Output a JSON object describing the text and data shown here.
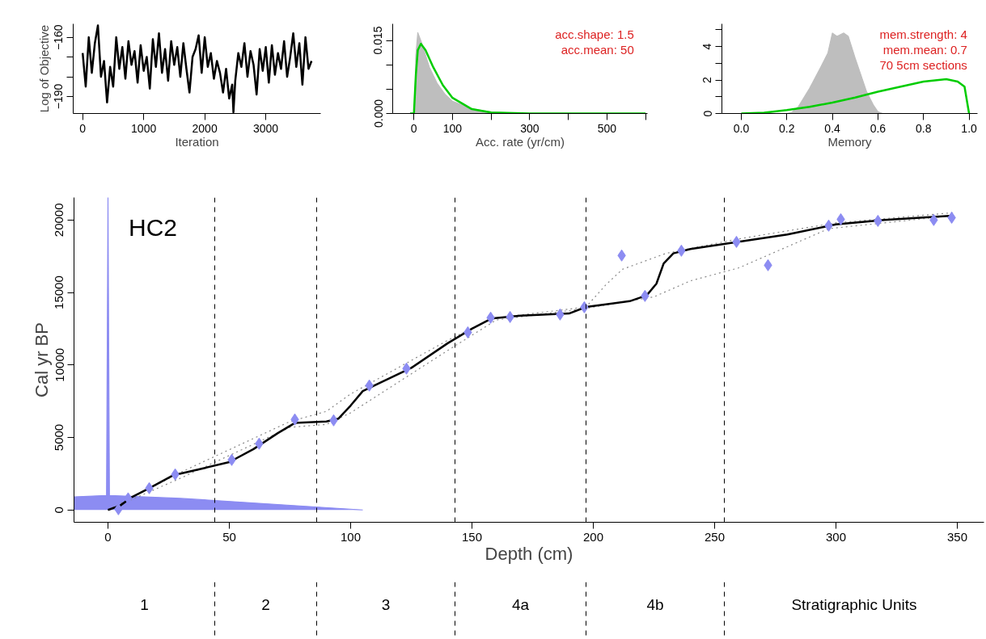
{
  "chart_data": [
    {
      "type": "line",
      "xlabel": "Iteration",
      "ylabel": "Log of Objective",
      "xlim": [
        -155,
        3900
      ],
      "ylim": [
        -198.6,
        -153.2
      ],
      "xticks": [
        0,
        1000,
        2000,
        3000
      ],
      "yticks": [
        {
          "value": -160,
          "label": "−160"
        },
        {
          "value": -170,
          "label": null
        },
        {
          "value": -180,
          "label": null
        },
        {
          "value": -190,
          "label": "−190"
        }
      ],
      "series": [
        {
          "color": "#000000",
          "x": [
            0,
            50,
            100,
            150,
            200,
            250,
            300,
            350,
            400,
            450,
            500,
            550,
            600,
            650,
            700,
            750,
            800,
            850,
            900,
            950,
            1000,
            1050,
            1100,
            1150,
            1200,
            1250,
            1300,
            1350,
            1400,
            1450,
            1500,
            1550,
            1600,
            1650,
            1700,
            1750,
            1800,
            1850,
            1900,
            1950,
            2000,
            2050,
            2100,
            2150,
            2200,
            2250,
            2300,
            2350,
            2400,
            2450,
            2470,
            2500,
            2550,
            2600,
            2650,
            2700,
            2750,
            2800,
            2850,
            2900,
            2950,
            3000,
            3050,
            3100,
            3150,
            3200,
            3250,
            3300,
            3350,
            3400,
            3450,
            3500,
            3550,
            3600,
            3650,
            3700,
            3750
          ],
          "values": [
            -168,
            -185,
            -160,
            -178,
            -163,
            -154,
            -180,
            -172,
            -193,
            -175,
            -185,
            -160,
            -176,
            -165,
            -181,
            -162,
            -174,
            -167,
            -183,
            -164,
            -177,
            -170,
            -186,
            -161,
            -175,
            -158,
            -178,
            -166,
            -182,
            -162,
            -174,
            -165,
            -180,
            -163,
            -176,
            -188,
            -170,
            -166,
            -159,
            -178,
            -160,
            -175,
            -168,
            -181,
            -172,
            -178,
            -188,
            -176,
            -191,
            -184,
            -198,
            -182,
            -168,
            -175,
            -163,
            -180,
            -167,
            -174,
            -189,
            -166,
            -177,
            -165,
            -183,
            -164,
            -179,
            -168,
            -176,
            -162,
            -180,
            -170,
            -158,
            -175,
            -163,
            -184,
            -160,
            -176,
            -172
          ]
        }
      ]
    },
    {
      "type": "area",
      "xlabel": "Acc. rate (yr/cm)",
      "xlim": [
        -55,
        605
      ],
      "ylim": [
        0,
        0.0184
      ],
      "xticks": [
        0,
        100,
        {
          "value": 200,
          "label": null
        },
        300,
        {
          "value": 400,
          "label": null
        },
        500,
        {
          "value": 600,
          "label": null
        }
      ],
      "yticks": [
        {
          "value": 0,
          "label": "0.000"
        },
        {
          "value": 0.005,
          "label": null
        },
        {
          "value": 0.01,
          "label": null
        },
        0.015
      ],
      "annotations": [
        "acc.shape:  1.5",
        "acc.mean:  50"
      ],
      "series": [
        {
          "type": "area",
          "color": "#bebebe",
          "x": [
            2,
            5,
            10,
            20,
            40,
            60,
            80,
            100,
            150,
            200,
            250,
            300
          ],
          "values": [
            0,
            0.012,
            0.0166,
            0.0145,
            0.0095,
            0.0062,
            0.004,
            0.0025,
            0.001,
            0.0003,
            0.0001,
            0
          ]
        },
        {
          "type": "line",
          "color": "#00cc00",
          "x": [
            -10,
            0,
            5,
            10,
            18,
            30,
            50,
            75,
            100,
            150,
            200,
            300,
            600
          ],
          "values": [
            0,
            0,
            0.008,
            0.013,
            0.0143,
            0.013,
            0.0095,
            0.0058,
            0.0032,
            0.0009,
            0.0002,
            0,
            0
          ]
        }
      ]
    },
    {
      "type": "area",
      "xlabel": "Memory",
      "xlim": [
        -0.085,
        1.037
      ],
      "ylim": [
        0,
        5.35
      ],
      "xticks": [
        {
          "value": 0,
          "label": "0.0"
        },
        0.2,
        0.4,
        0.6,
        0.8,
        {
          "value": 1,
          "label": "1.0"
        }
      ],
      "yticks": [
        0,
        {
          "value": 1,
          "label": null
        },
        2,
        {
          "value": 3,
          "label": null
        },
        4,
        {
          "value": 5,
          "label": null
        }
      ],
      "annotations": [
        "mem.strength: 4",
        "mem.mean: 0.7",
        "70 5cm sections"
      ],
      "series": [
        {
          "type": "area",
          "color": "#bebebe",
          "x": [
            0.2,
            0.22,
            0.25,
            0.3,
            0.35,
            0.38,
            0.4,
            0.42,
            0.45,
            0.47,
            0.5,
            0.55,
            0.58,
            0.6,
            0.62
          ],
          "values": [
            0,
            0.05,
            0.4,
            1.5,
            2.8,
            3.6,
            4.8,
            4.6,
            4.8,
            4.6,
            3.3,
            1.3,
            0.5,
            0.1,
            0
          ]
        },
        {
          "type": "line",
          "color": "#00cc00",
          "x": [
            0,
            0.1,
            0.2,
            0.3,
            0.4,
            0.5,
            0.6,
            0.7,
            0.8,
            0.9,
            0.95,
            0.98,
            1.0
          ],
          "values": [
            0,
            0.05,
            0.2,
            0.4,
            0.65,
            0.95,
            1.3,
            1.6,
            1.9,
            2.05,
            1.9,
            1.6,
            0
          ]
        }
      ]
    },
    {
      "type": "line",
      "xlabel": "Depth (cm)",
      "ylabel": "Cal yr BP",
      "xlim": [
        -14,
        361
      ],
      "ylim": [
        -850,
        21550
      ],
      "xticks": [
        0,
        50,
        100,
        150,
        200,
        250,
        300,
        350
      ],
      "yticks": [
        0,
        5000,
        10000,
        15000,
        20000
      ],
      "annotations": [
        "HC2",
        "1",
        "2",
        "3",
        "4a",
        "4b",
        "Stratigraphic Units"
      ],
      "ref_lines": [
        {
          "axis": "x",
          "value": 44,
          "label": null,
          "line_style": "dashed",
          "color": "#000000"
        },
        {
          "axis": "x",
          "value": 86,
          "label": null,
          "line_style": "dashed",
          "color": "#000000"
        },
        {
          "axis": "x",
          "value": 143,
          "label": null,
          "line_style": "dashed",
          "color": "#000000"
        },
        {
          "axis": "x",
          "value": 197,
          "label": null,
          "line_style": "dashed",
          "color": "#000000"
        },
        {
          "axis": "x",
          "value": 254,
          "label": null,
          "line_style": "dashed",
          "color": "#000000"
        }
      ],
      "series": [
        {
          "type": "area",
          "color": "#8c8cf2",
          "x": [
            -14,
            -0.6,
            0,
            0.6,
            30,
            105
          ],
          "values": [
            900,
            1000,
            21550,
            1000,
            800,
            0
          ]
        },
        {
          "type": "line",
          "line_style": "dotted",
          "color": "#888888",
          "x": [
            0,
            30,
            75,
            90,
            100,
            140,
            158,
            197,
            205,
            212,
            230,
            260,
            300,
            348
          ],
          "values": [
            0,
            2600,
            6100,
            6800,
            8000,
            11700,
            13200,
            14000,
            15500,
            16600,
            17700,
            18700,
            19800,
            20500
          ]
        },
        {
          "type": "line",
          "line_style": "dotted",
          "color": "#888888",
          "x": [
            0,
            30,
            75,
            90,
            100,
            140,
            160,
            197,
            225,
            240,
            260,
            297,
            348
          ],
          "values": [
            0,
            2200,
            5700,
            5900,
            6700,
            11000,
            13100,
            13900,
            14700,
            15800,
            16700,
            19400,
            20300
          ]
        },
        {
          "type": "line",
          "color": "#000000",
          "x": [
            0,
            5,
            10,
            17,
            27,
            40,
            50,
            60,
            70,
            77,
            90,
            95,
            100,
            105,
            110,
            125,
            140,
            150,
            158,
            170,
            190,
            197,
            215,
            222,
            226,
            229,
            233,
            240,
            260,
            280,
            300,
            320,
            348
          ],
          "values": [
            0,
            300,
            900,
            1500,
            2400,
            2900,
            3300,
            4200,
            5300,
            6000,
            6100,
            6300,
            7200,
            8200,
            8600,
            9800,
            11500,
            12500,
            13200,
            13400,
            13550,
            14000,
            14400,
            14800,
            15600,
            17000,
            17700,
            18000,
            18500,
            19000,
            19700,
            20000,
            20300
          ]
        },
        {
          "type": "scatter",
          "marker": "diamond",
          "color": "#8c8cf2",
          "x": [
            4.3,
            8.3,
            17,
            27.7,
            51,
            62.3,
            77,
            93,
            107.7,
            123,
            148.3,
            157.7,
            165.7,
            186.3,
            196.3,
            211.7,
            221.3,
            236.3,
            259,
            272,
            297,
            302,
            317.3,
            340.3,
            347.7
          ],
          "values": [
            50,
            800,
            1500,
            2450,
            3450,
            4570,
            6240,
            6180,
            8580,
            9750,
            12250,
            13260,
            13310,
            13480,
            13980,
            17550,
            14760,
            17880,
            18490,
            16880,
            19610,
            20050,
            19940,
            20000,
            20160
          ]
        }
      ]
    }
  ]
}
